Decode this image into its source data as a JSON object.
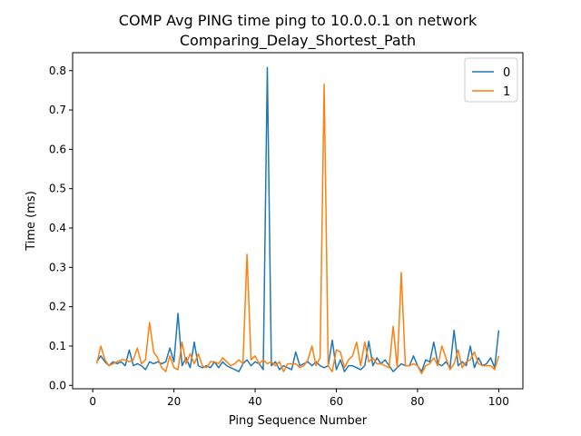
{
  "chart_data": {
    "type": "line",
    "title_line1": "COMP Avg PING time ping to 10.0.0.1 on network",
    "title_line2": "Comparing_Delay_Shortest_Path",
    "xlabel": "Ping Sequence Number",
    "ylabel": "Time (ms)",
    "xlim": [
      -4.95,
      105.95
    ],
    "ylim": [
      -0.0086,
      0.8456
    ],
    "xticks": [
      0,
      20,
      40,
      60,
      80,
      100
    ],
    "xtick_labels": [
      "0",
      "20",
      "40",
      "60",
      "80",
      "100"
    ],
    "yticks": [
      0.0,
      0.1,
      0.2,
      0.3,
      0.4,
      0.5,
      0.6,
      0.7,
      0.8
    ],
    "ytick_labels": [
      "0.0",
      "0.1",
      "0.2",
      "0.3",
      "0.4",
      "0.5",
      "0.6",
      "0.7",
      "0.8"
    ],
    "grid": false,
    "legend_position": "top-right",
    "x": [
      1,
      2,
      3,
      4,
      5,
      6,
      7,
      8,
      9,
      10,
      11,
      12,
      13,
      14,
      15,
      16,
      17,
      18,
      19,
      20,
      21,
      22,
      23,
      24,
      25,
      26,
      27,
      28,
      29,
      30,
      31,
      32,
      33,
      34,
      35,
      36,
      37,
      38,
      39,
      40,
      41,
      42,
      43,
      44,
      45,
      46,
      47,
      48,
      49,
      50,
      51,
      52,
      53,
      54,
      55,
      56,
      57,
      58,
      59,
      60,
      61,
      62,
      63,
      64,
      65,
      66,
      67,
      68,
      69,
      70,
      71,
      72,
      73,
      74,
      75,
      76,
      77,
      78,
      79,
      80,
      81,
      82,
      83,
      84,
      85,
      86,
      87,
      88,
      89,
      90,
      91,
      92,
      93,
      94,
      95,
      96,
      97,
      98,
      99,
      100
    ],
    "series": [
      {
        "name": "0",
        "color": "#1f77b4",
        "values": [
          0.06,
          0.075,
          0.06,
          0.05,
          0.06,
          0.055,
          0.06,
          0.05,
          0.09,
          0.05,
          0.055,
          0.05,
          0.04,
          0.06,
          0.055,
          0.06,
          0.055,
          0.06,
          0.095,
          0.06,
          0.183,
          0.05,
          0.07,
          0.045,
          0.11,
          0.05,
          0.045,
          0.05,
          0.045,
          0.06,
          0.045,
          0.06,
          0.05,
          0.045,
          0.04,
          0.035,
          0.055,
          0.065,
          0.05,
          0.06,
          0.055,
          0.04,
          0.808,
          0.05,
          0.06,
          0.04,
          0.05,
          0.045,
          0.04,
          0.085,
          0.05,
          0.055,
          0.06,
          0.05,
          0.06,
          0.05,
          0.045,
          0.05,
          0.115,
          0.04,
          0.065,
          0.035,
          0.05,
          0.05,
          0.045,
          0.04,
          0.05,
          0.112,
          0.05,
          0.07,
          0.055,
          0.065,
          0.05,
          0.035,
          0.045,
          0.055,
          0.05,
          0.05,
          0.075,
          0.05,
          0.035,
          0.065,
          0.06,
          0.11,
          0.055,
          0.05,
          0.06,
          0.045,
          0.14,
          0.05,
          0.06,
          0.05,
          0.1,
          0.045,
          0.07,
          0.05,
          0.055,
          0.07,
          0.045,
          0.14
        ]
      },
      {
        "name": "1",
        "color": "#ff7f0e",
        "values": [
          0.055,
          0.1,
          0.065,
          0.05,
          0.055,
          0.06,
          0.065,
          0.065,
          0.06,
          0.065,
          0.095,
          0.055,
          0.065,
          0.16,
          0.085,
          0.07,
          0.045,
          0.035,
          0.075,
          0.045,
          0.04,
          0.11,
          0.055,
          0.08,
          0.055,
          0.08,
          0.05,
          0.045,
          0.06,
          0.06,
          0.055,
          0.07,
          0.06,
          0.05,
          0.055,
          0.065,
          0.055,
          0.333,
          0.065,
          0.075,
          0.055,
          0.065,
          0.055,
          0.06,
          0.05,
          0.06,
          0.035,
          0.055,
          0.055,
          0.055,
          0.045,
          0.05,
          0.065,
          0.1,
          0.05,
          0.07,
          0.765,
          0.05,
          0.035,
          0.09,
          0.085,
          0.045,
          0.065,
          0.075,
          0.11,
          0.05,
          0.11,
          0.06,
          0.07,
          0.055,
          0.055,
          0.05,
          0.045,
          0.15,
          0.045,
          0.287,
          0.05,
          0.05,
          0.055,
          0.05,
          0.03,
          0.05,
          0.055,
          0.07,
          0.05,
          0.1,
          0.07,
          0.04,
          0.055,
          0.09,
          0.045,
          0.06,
          0.065,
          0.085,
          0.055,
          0.05,
          0.05,
          0.05,
          0.04,
          0.075
        ]
      }
    ]
  }
}
